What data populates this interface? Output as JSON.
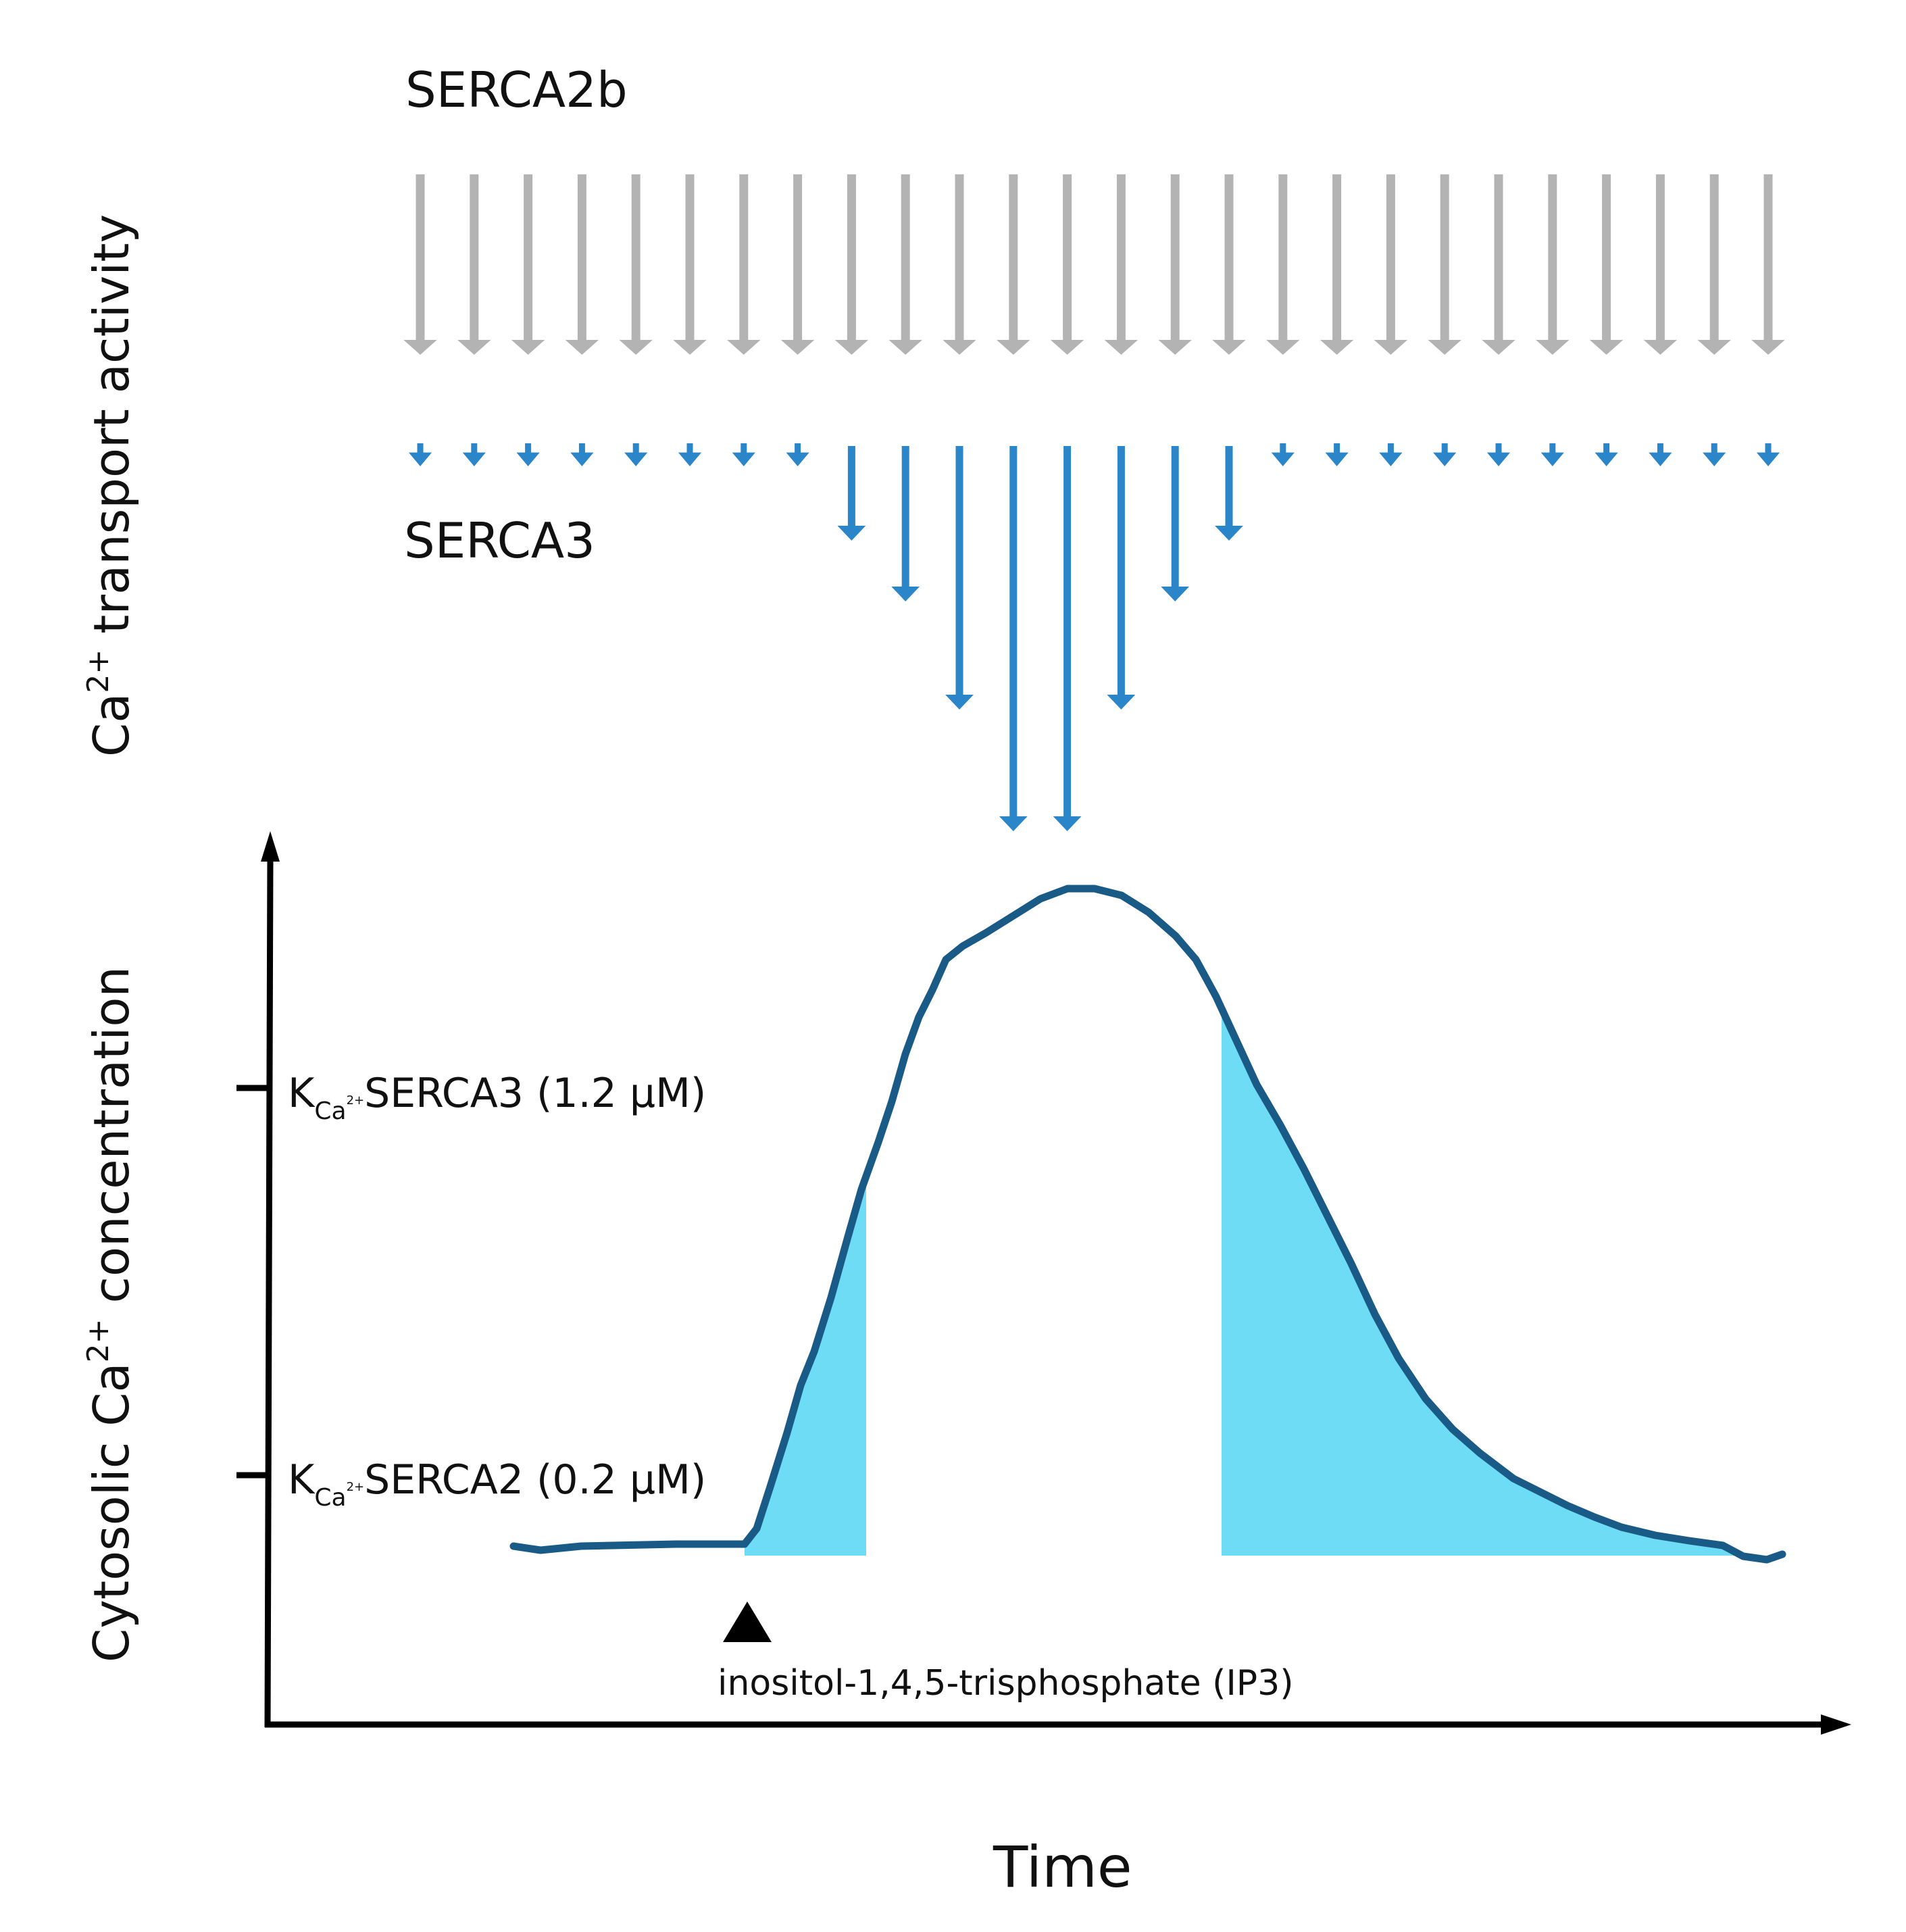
{
  "labels": {
    "serca2b": "SERCA2b",
    "serca3": "SERCA3",
    "y_top": "Ca",
    "y_top_sup": "2+",
    "y_top_rest": " transport activity",
    "y_bottom": "Cytosolic Ca",
    "y_bottom_sup": "2+",
    "y_bottom_rest": " concentration",
    "x_axis": "Time",
    "tick_high_k": "K",
    "tick_high_sub": "Ca",
    "tick_high_subsup": "2+",
    "tick_high_rest": "SERCA3 (1.2 µM)",
    "tick_low_k": "K",
    "tick_low_sub": "Ca",
    "tick_low_subsup": "2+",
    "tick_low_rest": "SERCA2 (0.2 µM)",
    "stimulus": "inositol-1,4,5-trisphosphate (IP3)"
  },
  "colors": {
    "serca2b_arrow": "#b3b3b3",
    "serca3_arrow": "#2a86c8",
    "curve": "#1a5a86",
    "fill": "#6fdcf5",
    "axis": "#000000"
  },
  "icons": {
    "stimulus_marker": "triangle-up-icon",
    "arrows": "arrow-down-icon"
  }
}
